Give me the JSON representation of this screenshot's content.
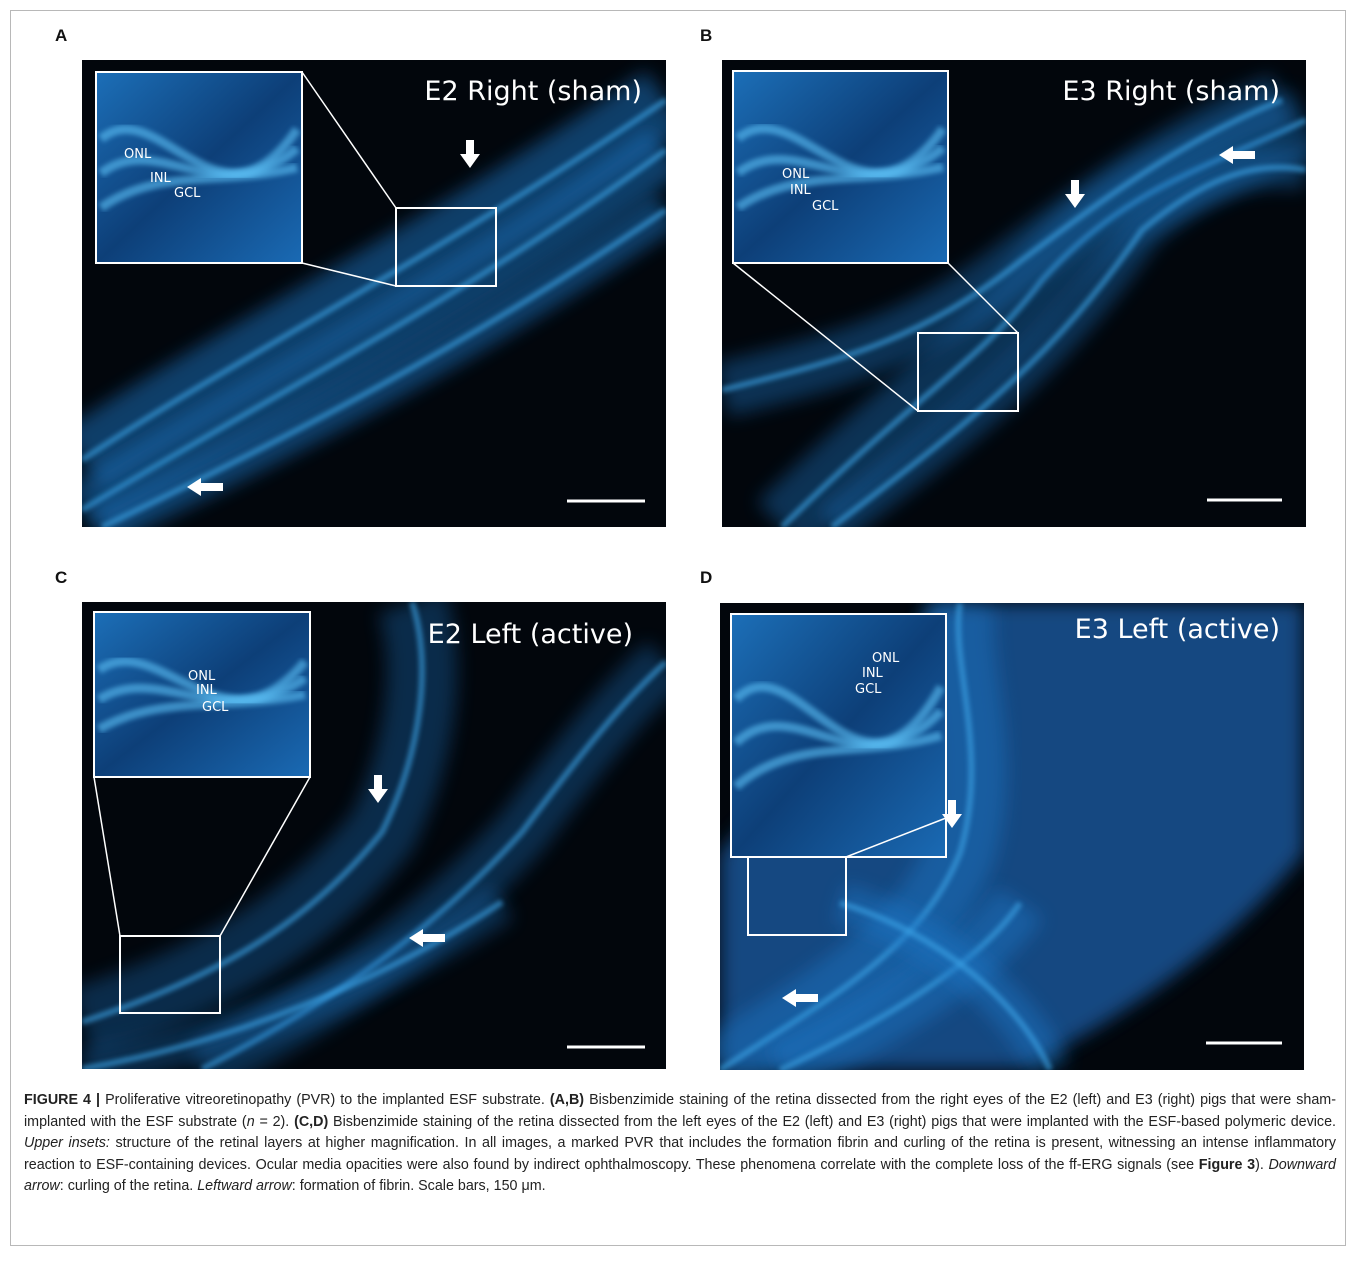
{
  "panels": [
    {
      "label": "A",
      "title": "E2 Right (sham)",
      "layers": [
        "ONL",
        "INL",
        "GCL"
      ]
    },
    {
      "label": "B",
      "title": "E3 Right (sham)",
      "layers": [
        "ONL",
        "INL",
        "GCL"
      ]
    },
    {
      "label": "C",
      "title": "E2 Left (active)",
      "layers": [
        "ONL",
        "INL",
        "GCL"
      ]
    },
    {
      "label": "D",
      "title": "E3 Left (active)",
      "layers": [
        "ONL",
        "INL",
        "GCL"
      ]
    }
  ],
  "caption": [
    {
      "text": "FIGURE 4 |",
      "style": "bold"
    },
    {
      "text": " Proliferative vitreoretinopathy (PVR) to the implanted ESF substrate. ",
      "style": "plain"
    },
    {
      "text": "(A,B)",
      "style": "bold"
    },
    {
      "text": " Bisbenzimide staining of the retina dissected from the right eyes of the E2 (left) and E3 (right) pigs that were sham-implanted with the ESF substrate (",
      "style": "plain"
    },
    {
      "text": "n",
      "style": "italic"
    },
    {
      "text": " = 2). ",
      "style": "plain"
    },
    {
      "text": "(C,D)",
      "style": "bold"
    },
    {
      "text": " Bisbenzimide staining of the retina dissected from the left eyes of the E2 (left) and E3 (right) pigs that were implanted with the ESF-based polymeric device. ",
      "style": "plain"
    },
    {
      "text": "Upper insets:",
      "style": "italic"
    },
    {
      "text": " structure of the retinal layers at higher magnification. In all images, a marked PVR that includes the formation fibrin and curling of the retina is present, witnessing an intense inflammatory reaction to ESF-containing devices. Ocular media opacities were also found by indirect ophthalmoscopy. These phenomena correlate with the complete loss of the ff-ERG signals (see ",
      "style": "plain"
    },
    {
      "text": "Figure 3",
      "style": "bold"
    },
    {
      "text": "). ",
      "style": "plain"
    },
    {
      "text": "Downward arrow",
      "style": "italic"
    },
    {
      "text": ": curling of the retina. ",
      "style": "plain"
    },
    {
      "text": "Leftward arrow",
      "style": "italic"
    },
    {
      "text": ": formation of fibrin. Scale bars, 150 μm.",
      "style": "plain"
    }
  ]
}
